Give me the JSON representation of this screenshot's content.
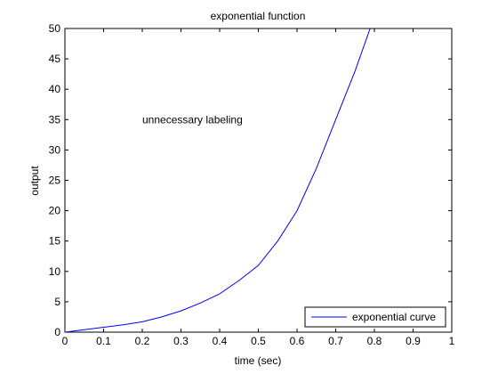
{
  "chart_data": {
    "type": "line",
    "title": "exponential function",
    "xlabel": "time (sec)",
    "ylabel": "output",
    "xlim": [
      0,
      1
    ],
    "ylim": [
      0,
      50
    ],
    "xticks": [
      0,
      0.1,
      0.2,
      0.3,
      0.4,
      0.5,
      0.6,
      0.7,
      0.8,
      0.9,
      1
    ],
    "xtick_labels": [
      "0",
      "0.1",
      "0.2",
      "0.3",
      "0.4",
      "0.5",
      "0.6",
      "0.7",
      "0.8",
      "0.9",
      "1"
    ],
    "yticks": [
      0,
      5,
      10,
      15,
      20,
      25,
      30,
      35,
      40,
      45,
      50
    ],
    "ytick_labels": [
      "0",
      "5",
      "10",
      "15",
      "20",
      "25",
      "30",
      "35",
      "40",
      "45",
      "50"
    ],
    "grid": false,
    "legend": {
      "placement": "bottom-right",
      "entries": [
        "exponential curve"
      ]
    },
    "annotations": [
      {
        "text": "unnecessary labeling",
        "x": 0.2,
        "y": 35
      }
    ],
    "series": [
      {
        "name": "exponential curve",
        "color": "#0000ff",
        "x": [
          0,
          0.05,
          0.1,
          0.15,
          0.2,
          0.25,
          0.3,
          0.35,
          0.4,
          0.45,
          0.5,
          0.55,
          0.6,
          0.65,
          0.7,
          0.75,
          0.8
        ],
        "y": [
          0.0,
          0.4,
          0.8,
          1.2,
          1.7,
          2.5,
          3.5,
          4.8,
          6.3,
          8.5,
          11.0,
          15.0,
          20.0,
          27.0,
          35.0,
          43.0,
          52.0
        ]
      }
    ]
  }
}
